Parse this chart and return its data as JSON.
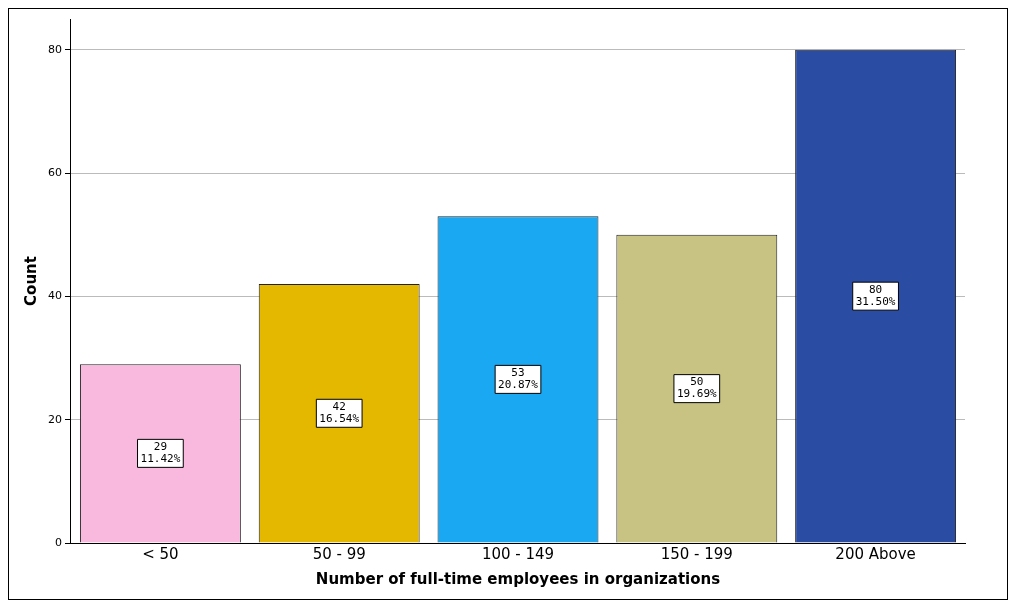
{
  "chart_data": {
    "type": "bar",
    "xlabel": "Number of full-time employees in organizations",
    "ylabel": "Count",
    "categories": [
      "< 50",
      "50 - 99",
      "100 - 149",
      "150 - 199",
      "200 Above"
    ],
    "values": [
      29,
      42,
      53,
      50,
      80
    ],
    "colors": [
      "#f9b9df",
      "#e5b800",
      "#1ba8f3",
      "#c9c383",
      "#2b4ca3"
    ],
    "value_labels": [
      "29\n11.42%",
      "42\n16.54%",
      "53\n20.87%",
      "50\n19.69%",
      "80\n31.50%"
    ],
    "ylim": [
      0,
      85
    ],
    "yticks": [
      0,
      20,
      40,
      60,
      80
    ],
    "grid": "y",
    "legend": false
  }
}
